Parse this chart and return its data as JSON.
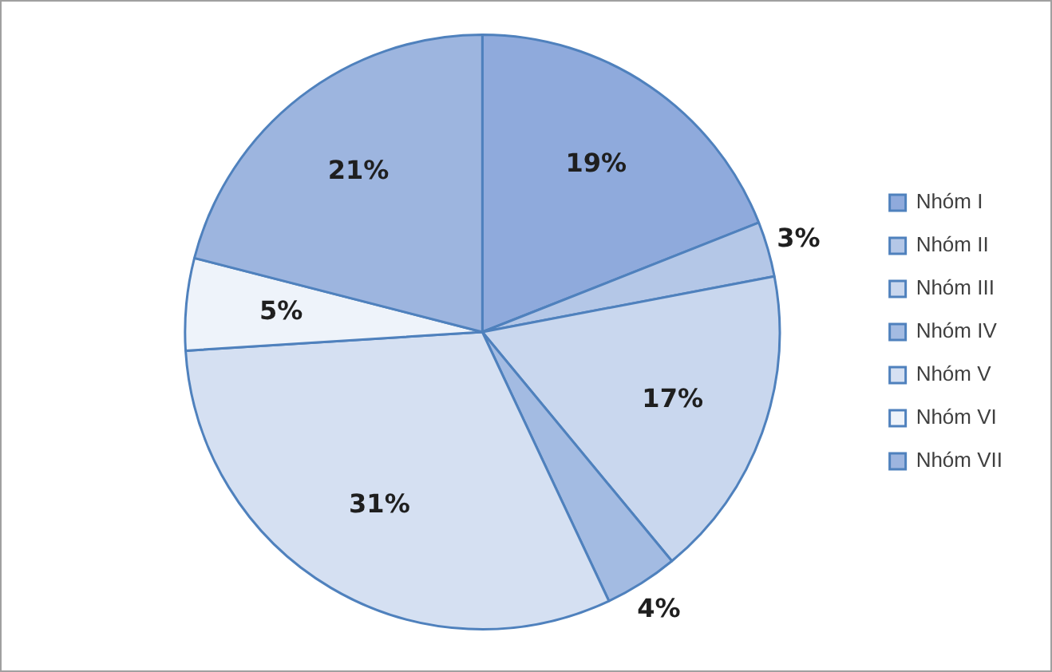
{
  "chart_data": {
    "type": "pie",
    "categories": [
      "Nhóm I",
      "Nhóm II",
      "Nhóm III",
      "Nhóm IV",
      "Nhóm V",
      "Nhóm VI",
      "Nhóm VII"
    ],
    "values": [
      19,
      3,
      17,
      4,
      31,
      5,
      21
    ],
    "value_labels": [
      "19%",
      "3%",
      "17%",
      "4%",
      "31%",
      "5%",
      "21%"
    ],
    "colors": [
      "#8faadc",
      "#b4c7e7",
      "#c9d7ee",
      "#a3bbe2",
      "#d5e0f2",
      "#eef3fa",
      "#9db5df"
    ],
    "legend": "right"
  }
}
